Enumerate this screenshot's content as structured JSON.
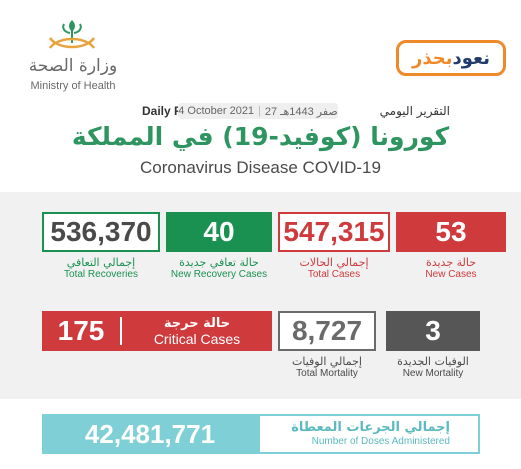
{
  "header": {
    "ministry_ar": "وزارة الصحة",
    "ministry_en": "Ministry of Health",
    "campaign_word1": "نعود",
    "campaign_word2": "بحذر",
    "report_en": "Daily Report",
    "report_ar": "التقرير اليومي",
    "date_gregorian": "4 October 2021",
    "date_hijri": "27 صفر 1443هـ",
    "title_ar": "كورونا (كوفيد-19) في المملكة",
    "title_en": "Coronavirus Disease COVID-19"
  },
  "stats": {
    "new_cases": {
      "value": "53",
      "label_ar": "حالة جديدة",
      "label_en": "New Cases"
    },
    "total_cases": {
      "value": "547,315",
      "label_ar": "إجمالي الحالات",
      "label_en": "Total Cases"
    },
    "new_recoveries": {
      "value": "40",
      "label_ar": "حالة تعافي جديدة",
      "label_en": "New Recovery Cases"
    },
    "total_recoveries": {
      "value": "536,370",
      "label_ar": "إجمالي التعافي",
      "label_en": "Total Recoveries"
    },
    "new_mortality": {
      "value": "3",
      "label_ar": "الوفيات الجديدة",
      "label_en": "New Mortality"
    },
    "total_mortality": {
      "value": "8,727",
      "label_ar": "إجمالي الوفيات",
      "label_en": "Total Mortality"
    },
    "critical_cases": {
      "value": "175",
      "label_ar": "حالة حرجة",
      "label_en": "Critical Cases"
    }
  },
  "doses": {
    "value": "42,481,771",
    "label_ar": "إجمالي الجرعات المعطاة",
    "label_en": "Number of Doses Administered"
  },
  "colors": {
    "red": "#cf3a3d",
    "green": "#1a9150",
    "teal": "#7ed0d6",
    "gray": "#565656",
    "title_green": "#2e9560",
    "campaign_orange": "#f0892a",
    "campaign_navy": "#1f3b6e"
  },
  "icons": {
    "ministry_logo": "moh-emblem-icon"
  }
}
